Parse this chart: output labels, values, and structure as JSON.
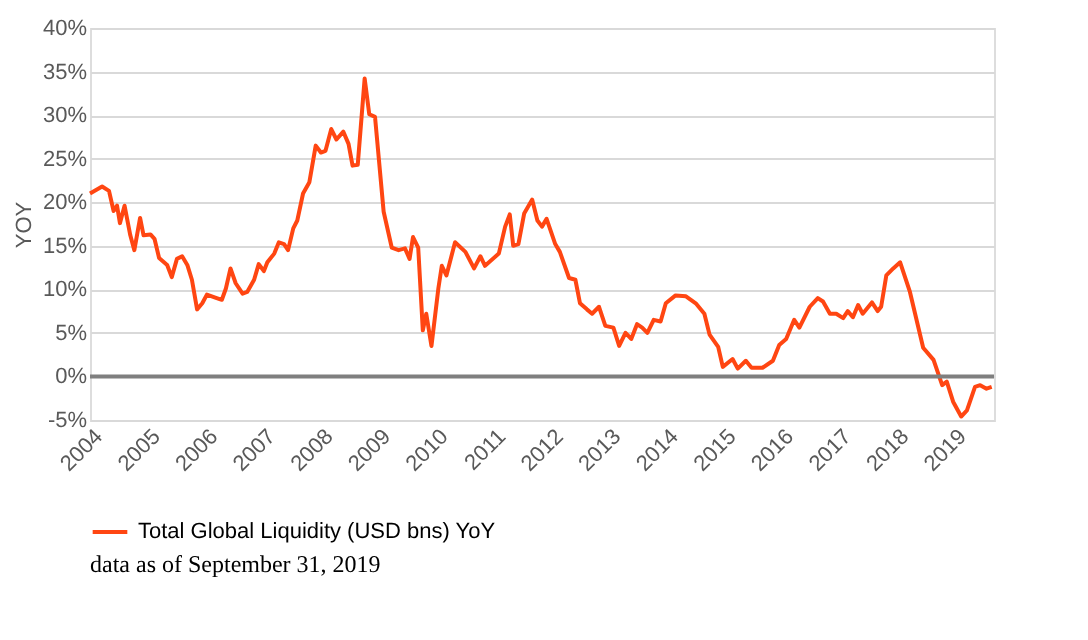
{
  "chart_data": {
    "type": "line",
    "ylabel": "YOY",
    "annotations": [
      "data as of September 31, 2019"
    ],
    "series": [
      {
        "name": "Total Global Liquidity (USD bns) YoY",
        "color": "#ff4612",
        "x": [
          2004.0,
          2004.21,
          2004.33,
          2004.41,
          2004.47,
          2004.52,
          2004.6,
          2004.7,
          2004.77,
          2004.87,
          2004.93,
          2005.05,
          2005.12,
          2005.2,
          2005.34,
          2005.42,
          2005.51,
          2005.6,
          2005.69,
          2005.77,
          2005.86,
          2005.95,
          2006.03,
          2006.2,
          2006.29,
          2006.36,
          2006.44,
          2006.53,
          2006.65,
          2006.73,
          2006.85,
          2006.93,
          2007.02,
          2007.08,
          2007.2,
          2007.28,
          2007.37,
          2007.44,
          2007.53,
          2007.6,
          2007.7,
          2007.81,
          2007.92,
          2008.01,
          2008.09,
          2008.19,
          2008.28,
          2008.4,
          2008.49,
          2008.56,
          2008.65,
          2008.77,
          2008.85,
          2008.95,
          2009.1,
          2009.24,
          2009.36,
          2009.47,
          2009.55,
          2009.61,
          2009.7,
          2009.78,
          2009.84,
          2009.93,
          2010.05,
          2010.11,
          2010.19,
          2010.34,
          2010.52,
          2010.67,
          2010.78,
          2010.86,
          2011.1,
          2011.21,
          2011.29,
          2011.35,
          2011.44,
          2011.54,
          2011.68,
          2011.77,
          2011.85,
          2011.93,
          2012.08,
          2012.16,
          2012.32,
          2012.43,
          2012.51,
          2012.63,
          2012.72,
          2012.84,
          2012.95,
          2013.09,
          2013.19,
          2013.3,
          2013.4,
          2013.5,
          2013.59,
          2013.68,
          2013.79,
          2013.91,
          2014.0,
          2014.17,
          2014.35,
          2014.52,
          2014.67,
          2014.76,
          2014.91,
          2014.99,
          2015.16,
          2015.25,
          2015.39,
          2015.49,
          2015.68,
          2015.86,
          2015.97,
          2016.09,
          2016.23,
          2016.32,
          2016.5,
          2016.64,
          2016.73,
          2016.85,
          2016.96,
          2017.08,
          2017.16,
          2017.25,
          2017.34,
          2017.42,
          2017.58,
          2017.68,
          2017.74,
          2017.83,
          2017.95,
          2018.07,
          2018.24,
          2018.47,
          2018.65,
          2018.8,
          2018.88,
          2018.99,
          2019.13,
          2019.23,
          2019.37,
          2019.46,
          2019.57,
          2019.66
        ],
        "values": [
          21.0,
          21.8,
          21.3,
          19.0,
          19.6,
          17.6,
          19.6,
          16.2,
          14.5,
          18.2,
          16.2,
          16.3,
          15.8,
          13.6,
          12.8,
          11.4,
          13.5,
          13.8,
          12.8,
          11.1,
          7.7,
          8.4,
          9.4,
          9.0,
          8.8,
          10.1,
          12.4,
          10.7,
          9.5,
          9.7,
          11.1,
          12.9,
          12.1,
          13.1,
          14.1,
          15.4,
          15.2,
          14.5,
          17.0,
          17.9,
          21.0,
          22.3,
          26.5,
          25.7,
          25.9,
          28.4,
          27.2,
          28.1,
          26.7,
          24.2,
          24.3,
          34.2,
          30.1,
          29.8,
          18.9,
          14.8,
          14.5,
          14.7,
          13.5,
          16.0,
          14.8,
          5.3,
          7.2,
          3.5,
          10.1,
          12.7,
          11.6,
          15.4,
          14.3,
          12.4,
          13.8,
          12.7,
          14.1,
          17.2,
          18.6,
          15.0,
          15.2,
          18.7,
          20.3,
          17.9,
          17.2,
          18.1,
          15.2,
          14.3,
          11.3,
          11.1,
          8.4,
          7.7,
          7.2,
          8.0,
          5.8,
          5.6,
          3.5,
          5.0,
          4.3,
          6.0,
          5.6,
          5.0,
          6.5,
          6.3,
          8.4,
          9.3,
          9.2,
          8.4,
          7.2,
          4.8,
          3.4,
          1.1,
          2.0,
          0.9,
          1.8,
          1.0,
          1.0,
          1.8,
          3.6,
          4.3,
          6.5,
          5.6,
          8.0,
          9.0,
          8.6,
          7.2,
          7.2,
          6.7,
          7.5,
          6.8,
          8.2,
          7.2,
          8.5,
          7.5,
          8.0,
          11.6,
          12.4,
          13.1,
          9.7,
          3.3,
          1.9,
          -1.0,
          -0.6,
          -2.9,
          -4.6,
          -3.9,
          -1.2,
          -1.0,
          -1.4,
          -1.2
        ]
      }
    ],
    "xlim": [
      2004,
      2019.7
    ],
    "xticks": [
      2004,
      2005,
      2006,
      2007,
      2008,
      2009,
      2010,
      2011,
      2012,
      2013,
      2014,
      2015,
      2016,
      2017,
      2018,
      2019
    ],
    "ylim": [
      -5,
      40
    ],
    "yticks": [
      {
        "value": -5,
        "label": "-5%"
      },
      {
        "value": 0,
        "label": "0%"
      },
      {
        "value": 5,
        "label": "5%"
      },
      {
        "value": 10,
        "label": "10%"
      },
      {
        "value": 15,
        "label": "15%"
      },
      {
        "value": 20,
        "label": "20%"
      },
      {
        "value": 25,
        "label": "25%"
      },
      {
        "value": 30,
        "label": "30%"
      },
      {
        "value": 35,
        "label": "35%"
      },
      {
        "value": 40,
        "label": "40%"
      }
    ],
    "ref_lines": [
      {
        "axis": "y",
        "value": 0,
        "color": "#7f7f7f"
      }
    ],
    "grid": "y",
    "legend": "bottom",
    "marker": "none",
    "line_style": "solid"
  }
}
